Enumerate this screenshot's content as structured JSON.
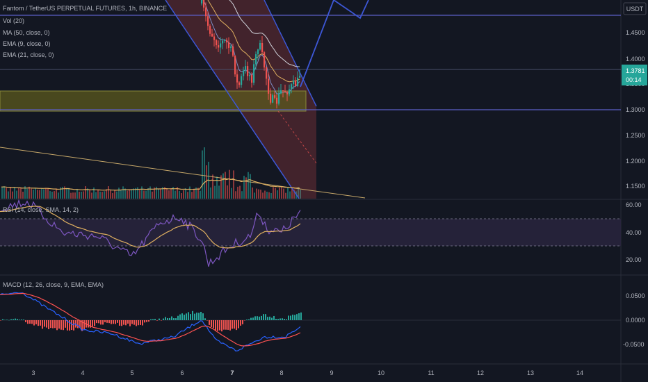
{
  "header": {
    "title": "Fantom / TetherUS PERPETUAL FUTURES, 1h, BINANCE",
    "currency": "USDT"
  },
  "indicators": {
    "vol": "Vol (20)",
    "ma": "MA (50, close, 0)",
    "ema9": "EMA (9, close, 0)",
    "ema21": "EMA (21, close, 0)",
    "rsi": "RSI (14, close, SMA, 14, 2)",
    "macd": "MACD (12, 26, close, 9, EMA, EMA)"
  },
  "price_axis": {
    "ticks": [
      "1.4500",
      "1.4000",
      "1.3500",
      "1.3000",
      "1.2500",
      "1.2000",
      "1.1500"
    ],
    "current_price": "1.3781",
    "countdown": "00:14"
  },
  "rsi_axis": {
    "ticks": [
      "60.00",
      "40.00",
      "20.00"
    ]
  },
  "macd_axis": {
    "ticks": [
      "0.0500",
      "0.0000",
      "-0.0500"
    ]
  },
  "time_axis": {
    "labels": [
      "3",
      "4",
      "5",
      "6",
      "7",
      "8",
      "9",
      "10",
      "11",
      "12",
      "13",
      "14"
    ]
  },
  "colors": {
    "background": "#131722",
    "up": "#26a69a",
    "down": "#ef5350",
    "channel_line": "#3d57d6",
    "horizontal_line": "#5b5fc7",
    "zone_fill": "#5c5a1d",
    "rsi_band": "#2a2540",
    "rsi_line": "#7e57c2",
    "rsi_ma": "#e0b060",
    "macd_line": "#2962ff",
    "signal_line": "#ff5252",
    "price_tag": "#26a69a",
    "trendline": "#c8a96a"
  }
}
